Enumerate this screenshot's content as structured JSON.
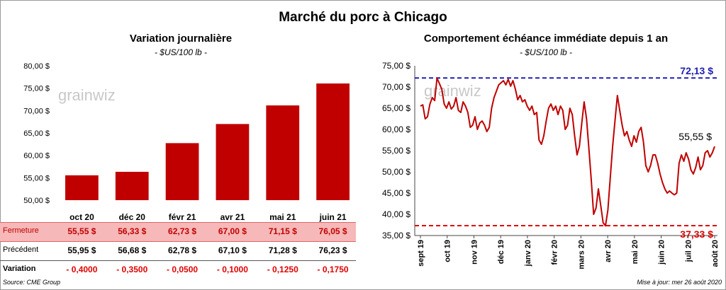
{
  "title": "Marché du porc à Chicago",
  "left": {
    "title": "Variation journalière",
    "unit": "- $US/100 lb -",
    "watermark": "grainwiz",
    "rows": {
      "fermeture_label": "Fermeture",
      "precedent_label": "Précédent",
      "variation_label": "Variation",
      "fermeture": [
        "55,55 $",
        "56,33 $",
        "62,73 $",
        "67,00 $",
        "71,15 $",
        "76,05 $"
      ],
      "precedent": [
        "55,95 $",
        "56,68 $",
        "62,78 $",
        "67,10 $",
        "71,28 $",
        "76,23 $"
      ],
      "variation": [
        "- 0,4000",
        "- 0,3500",
        "- 0,0500",
        "- 0,1000",
        "- 0,1250",
        "- 0,1750"
      ]
    }
  },
  "right": {
    "title": "Comportement échéance immédiate depuis 1 an",
    "unit": "- $US/100 lb -",
    "watermark": "grainwiz",
    "high_label": "72,13 $",
    "low_label": "37,33 $",
    "last_label": "55,55 $"
  },
  "footer": {
    "source": "Source: CME Group",
    "updated": "Mise à jour: mer 26 août 2020"
  },
  "colors": {
    "bar": "#c00000",
    "line": "#c00000",
    "high": "#1f1fb0",
    "low": "#e00000",
    "fermeture_bg": "#f6b8b8"
  },
  "chart_data": [
    {
      "type": "bar",
      "title": "Variation journalière",
      "categories": [
        "oct 20",
        "déc 20",
        "févr 21",
        "avr 21",
        "mai 21",
        "juin 21"
      ],
      "values": [
        55.55,
        56.33,
        62.73,
        67.0,
        71.15,
        76.05
      ],
      "ylim": [
        50,
        80
      ],
      "yticks": [
        50,
        55,
        60,
        65,
        70,
        75,
        80
      ],
      "ytick_labels": [
        "50,00 $",
        "55,00 $",
        "60,00 $",
        "65,00 $",
        "70,00 $",
        "75,00 $",
        "80,00 $"
      ],
      "grid": false
    },
    {
      "type": "line",
      "title": "Comportement échéance immédiate depuis 1 an",
      "xticks": [
        "sept 19",
        "oct 19",
        "nov 19",
        "déc 19",
        "janv 20",
        "févr 20",
        "mars 20",
        "avr 20",
        "mai 20",
        "juin 20",
        "juil 20",
        "août 20"
      ],
      "ylim": [
        35,
        75
      ],
      "yticks": [
        35,
        40,
        45,
        50,
        55,
        60,
        65,
        70,
        75
      ],
      "ytick_labels": [
        "35,00 $",
        "40,00 $",
        "45,00 $",
        "50,00 $",
        "55,00 $",
        "60,00 $",
        "65,00 $",
        "70,00 $",
        "75,00 $"
      ],
      "high": 72.13,
      "low": 37.33,
      "grid": false,
      "values": [
        65.5,
        65.8,
        62.5,
        63.0,
        66.0,
        67.5,
        66.8,
        72.1,
        70.8,
        69.5,
        66.0,
        65.0,
        66.5,
        64.8,
        65.5,
        67.5,
        64.5,
        64.0,
        66.5,
        65.5,
        64.0,
        60.5,
        61.0,
        63.0,
        60.0,
        61.5,
        62.0,
        61.0,
        59.5,
        60.5,
        65.0,
        67.5,
        69.0,
        70.5,
        71.0,
        71.5,
        70.5,
        71.8,
        70.2,
        71.5,
        69.5,
        67.0,
        68.0,
        66.5,
        67.0,
        65.5,
        64.5,
        65.5,
        63.5,
        64.0,
        57.5,
        56.5,
        58.5,
        62.0,
        65.0,
        66.0,
        64.5,
        65.5,
        63.5,
        65.5,
        64.5,
        60.0,
        61.0,
        65.0,
        63.5,
        58.5,
        54.0,
        56.0,
        61.5,
        66.5,
        62.5,
        55.5,
        48.0,
        40.0,
        41.5,
        46.0,
        42.0,
        38.0,
        37.3,
        41.0,
        48.5,
        56.0,
        62.0,
        68.0,
        64.5,
        61.0,
        58.5,
        59.5,
        57.5,
        56.0,
        58.5,
        57.0,
        59.5,
        60.5,
        57.0,
        51.5,
        50.0,
        51.5,
        54.0,
        54.0,
        52.0,
        49.5,
        47.5,
        46.0,
        45.0,
        45.5,
        45.0,
        44.6,
        45.0,
        52.0,
        54.0,
        52.5,
        54.5,
        53.0,
        50.5,
        49.5,
        51.0,
        53.5,
        50.5,
        51.5,
        54.5,
        55.0,
        53.5,
        54.5,
        56.0
      ]
    }
  ]
}
